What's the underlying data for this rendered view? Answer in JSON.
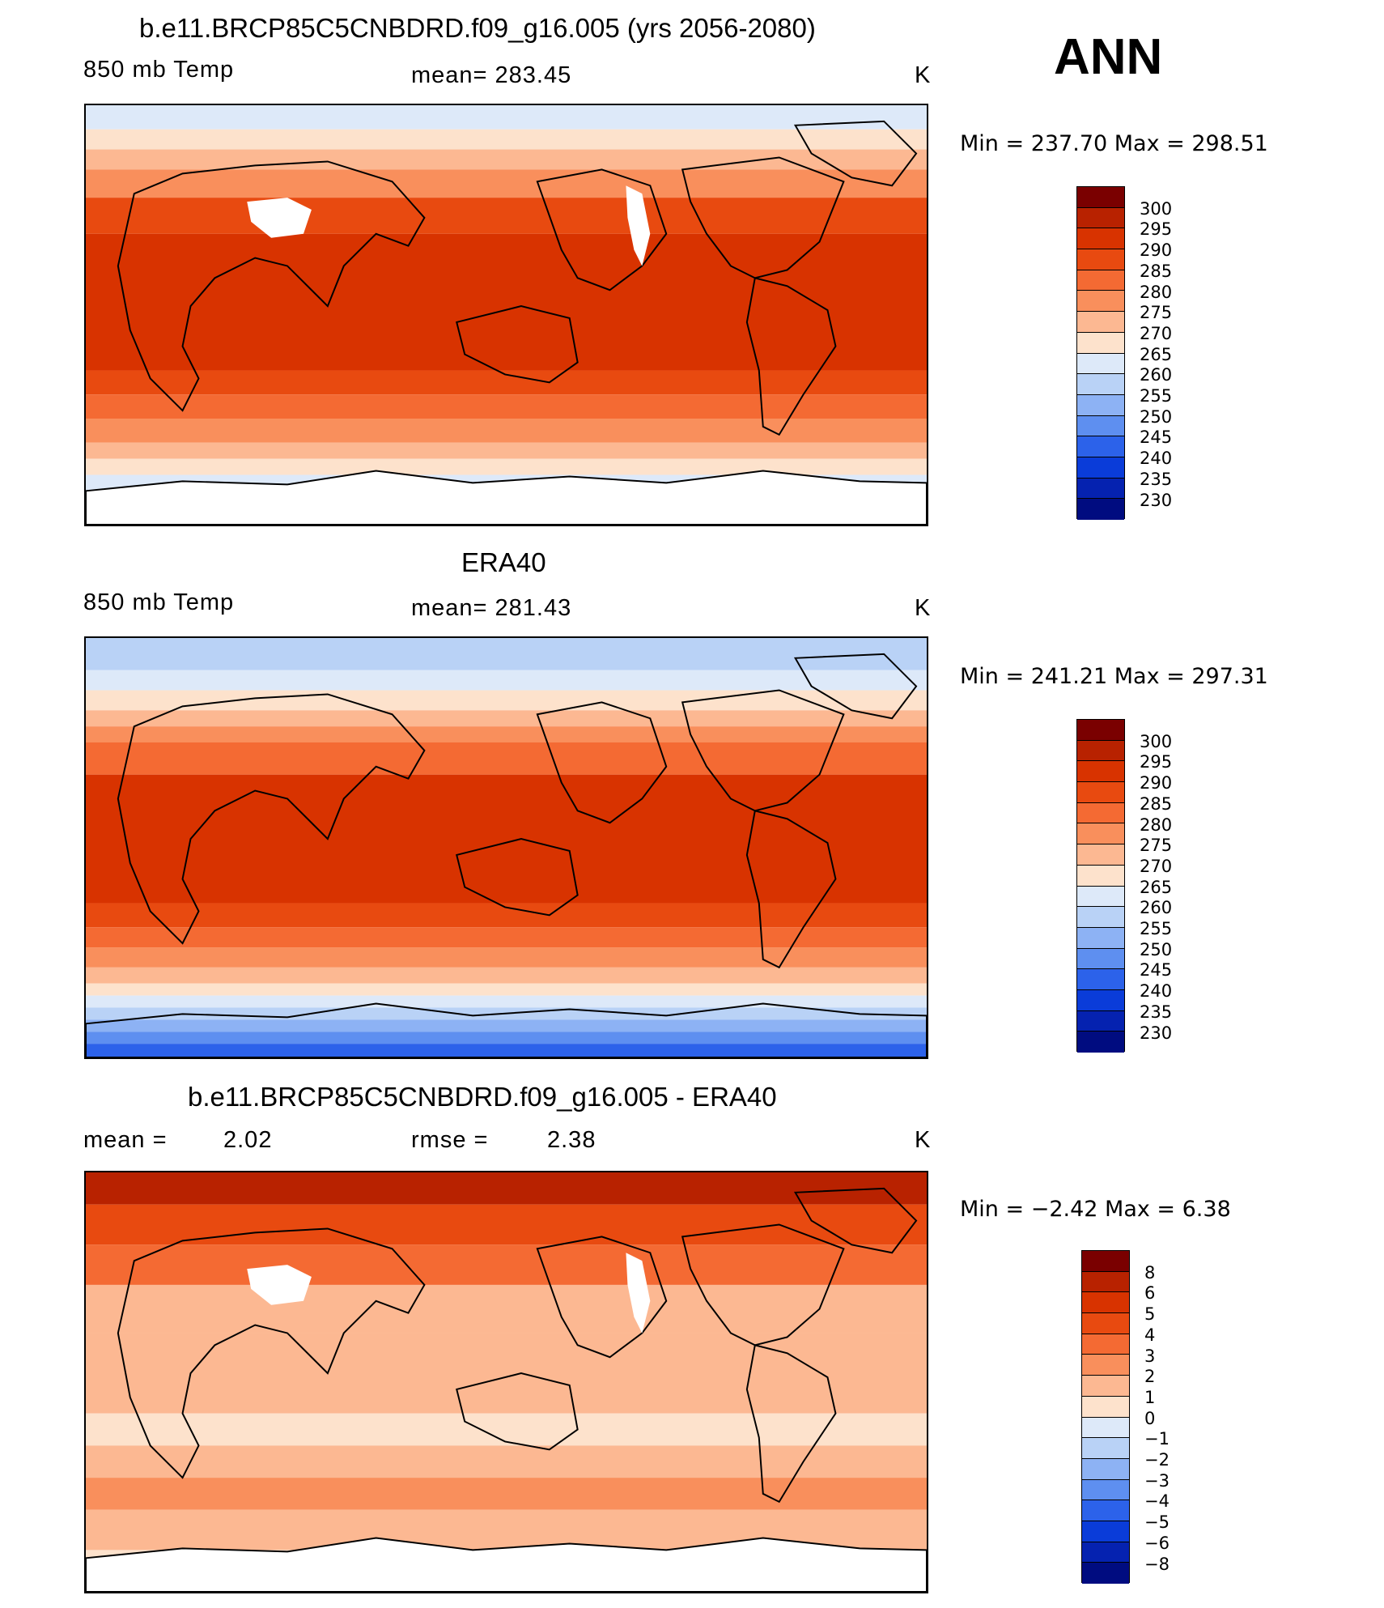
{
  "season": "ANN",
  "panels": [
    {
      "title": "b.e11.BRCP85C5CNBDRD.f09_g16.005 (yrs 2056-2080)",
      "variable": "850 mb Temp",
      "stat1": "mean=  283.45",
      "stat2": "",
      "units": "K",
      "minmax": "Min  =  237.70  Max  =  298.51",
      "scale": "abs_model"
    },
    {
      "title": "ERA40",
      "variable": "850 mb Temp",
      "stat1": "mean=  281.43",
      "stat2": "",
      "units": "K",
      "minmax": "Min  =  241.21  Max  =  297.31",
      "scale": "abs_obs"
    },
    {
      "title": "b.e11.BRCP85C5CNBDRD.f09_g16.005 - ERA40",
      "variable": "mean  =",
      "stat1": "2.02",
      "stat2label": "rmse  =",
      "stat2": "2.38",
      "units": "K",
      "minmax": "Min  =    −2.42  Max  =     6.38",
      "scale": "diff"
    }
  ],
  "colorbars": {
    "absolute": {
      "labels": [
        "300",
        "295",
        "290",
        "285",
        "280",
        "275",
        "270",
        "265",
        "260",
        "255",
        "250",
        "245",
        "240",
        "235",
        "230"
      ],
      "colors": [
        "#7a0000",
        "#b82200",
        "#d83300",
        "#e84a10",
        "#f46a33",
        "#f98f5c",
        "#fcb892",
        "#fde2cc",
        "#dde9f9",
        "#b9d2f6",
        "#8db2f4",
        "#5e8ff0",
        "#2c62ea",
        "#0a3cd9",
        "#0522b0",
        "#000c80"
      ]
    },
    "difference": {
      "labels": [
        "8",
        "6",
        "5",
        "4",
        "3",
        "2",
        "1",
        "0",
        "−1",
        "−2",
        "−3",
        "−4",
        "−5",
        "−6",
        "−8"
      ],
      "colors": [
        "#7a0000",
        "#b82200",
        "#d83300",
        "#e84a10",
        "#f46a33",
        "#f98f5c",
        "#fcb892",
        "#fde2cc",
        "#dde9f9",
        "#b9d2f6",
        "#8db2f4",
        "#5e8ff0",
        "#2c62ea",
        "#0a3cd9",
        "#0522b0",
        "#000c80"
      ]
    }
  }
}
